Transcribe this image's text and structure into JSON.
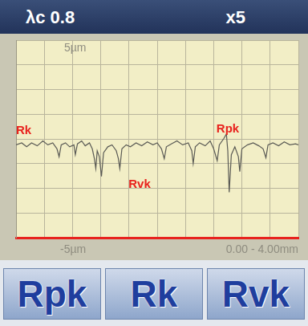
{
  "header": {
    "left": "λc 0.8",
    "right": "x5"
  },
  "chart_data": {
    "type": "line",
    "x": [
      0.0,
      0.08,
      0.15,
      0.22,
      0.3,
      0.38,
      0.45,
      0.52,
      0.58,
      0.61,
      0.64,
      0.7,
      0.76,
      0.82,
      0.84,
      0.87,
      0.93,
      0.98,
      1.04,
      1.08,
      1.11,
      1.13,
      1.15,
      1.18,
      1.21,
      1.24,
      1.3,
      1.36,
      1.42,
      1.45,
      1.47,
      1.5,
      1.56,
      1.62,
      1.7,
      1.78,
      1.86,
      1.94,
      2.0,
      2.06,
      2.1,
      2.13,
      2.2,
      2.28,
      2.36,
      2.44,
      2.49,
      2.51,
      2.54,
      2.6,
      2.68,
      2.75,
      2.8,
      2.85,
      2.88,
      2.94,
      2.98,
      3.0,
      3.02,
      3.05,
      3.1,
      3.15,
      3.17,
      3.2,
      3.28,
      3.36,
      3.44,
      3.5,
      3.54,
      3.57,
      3.64,
      3.72,
      3.8,
      3.88,
      3.96,
      4.0
    ],
    "values": [
      -0.3,
      -0.2,
      -0.4,
      -0.2,
      -0.35,
      -0.1,
      -0.3,
      -0.2,
      -0.5,
      -0.9,
      -0.3,
      -0.2,
      -0.4,
      -0.3,
      -0.8,
      -0.25,
      -0.1,
      -0.35,
      -0.2,
      -0.5,
      -1.0,
      -1.5,
      -0.6,
      -0.9,
      -1.9,
      -0.7,
      -0.4,
      -0.3,
      -0.6,
      -1.0,
      -1.5,
      -0.5,
      -0.3,
      -0.4,
      -0.2,
      -0.35,
      -0.15,
      -0.3,
      -0.2,
      -0.5,
      -1.0,
      -0.4,
      -0.25,
      -0.1,
      -0.3,
      -0.2,
      -0.6,
      -1.25,
      -0.4,
      -0.2,
      -0.35,
      -0.1,
      -0.5,
      -1.1,
      -0.3,
      0.0,
      0.25,
      -0.6,
      -2.7,
      -0.8,
      -0.4,
      -0.9,
      -1.65,
      -0.5,
      -0.3,
      -0.2,
      -0.35,
      -0.5,
      -0.95,
      -0.3,
      -0.2,
      -0.35,
      -0.15,
      -0.3,
      -0.25,
      -0.3
    ],
    "color": "#5a5a55",
    "xlim": [
      0,
      4
    ],
    "ylim": [
      -5,
      5
    ],
    "xticks": [
      0,
      0.4,
      0.8,
      1.2,
      1.6,
      2,
      2.4,
      2.8,
      3.2,
      3.6,
      4
    ],
    "yticks": [
      -5,
      -3.75,
      -2.5,
      -1.25,
      0,
      1.25,
      2.5,
      3.75,
      5
    ],
    "grid": true,
    "tick_labels": false,
    "y_top_label": "5µm",
    "y_bottom_label": "-5µm",
    "x_range_label": "0.00 - 4.00mm",
    "annotations": [
      {
        "text": "Rk",
        "x": 0.0,
        "y": 0.4
      },
      {
        "text": "Rvk",
        "x": 1.75,
        "y": -2.3
      },
      {
        "text": "Rpk",
        "x": 3.0,
        "y": 0.5
      }
    ]
  },
  "buttons": [
    "Rpk",
    "Rk",
    "Rvk"
  ]
}
